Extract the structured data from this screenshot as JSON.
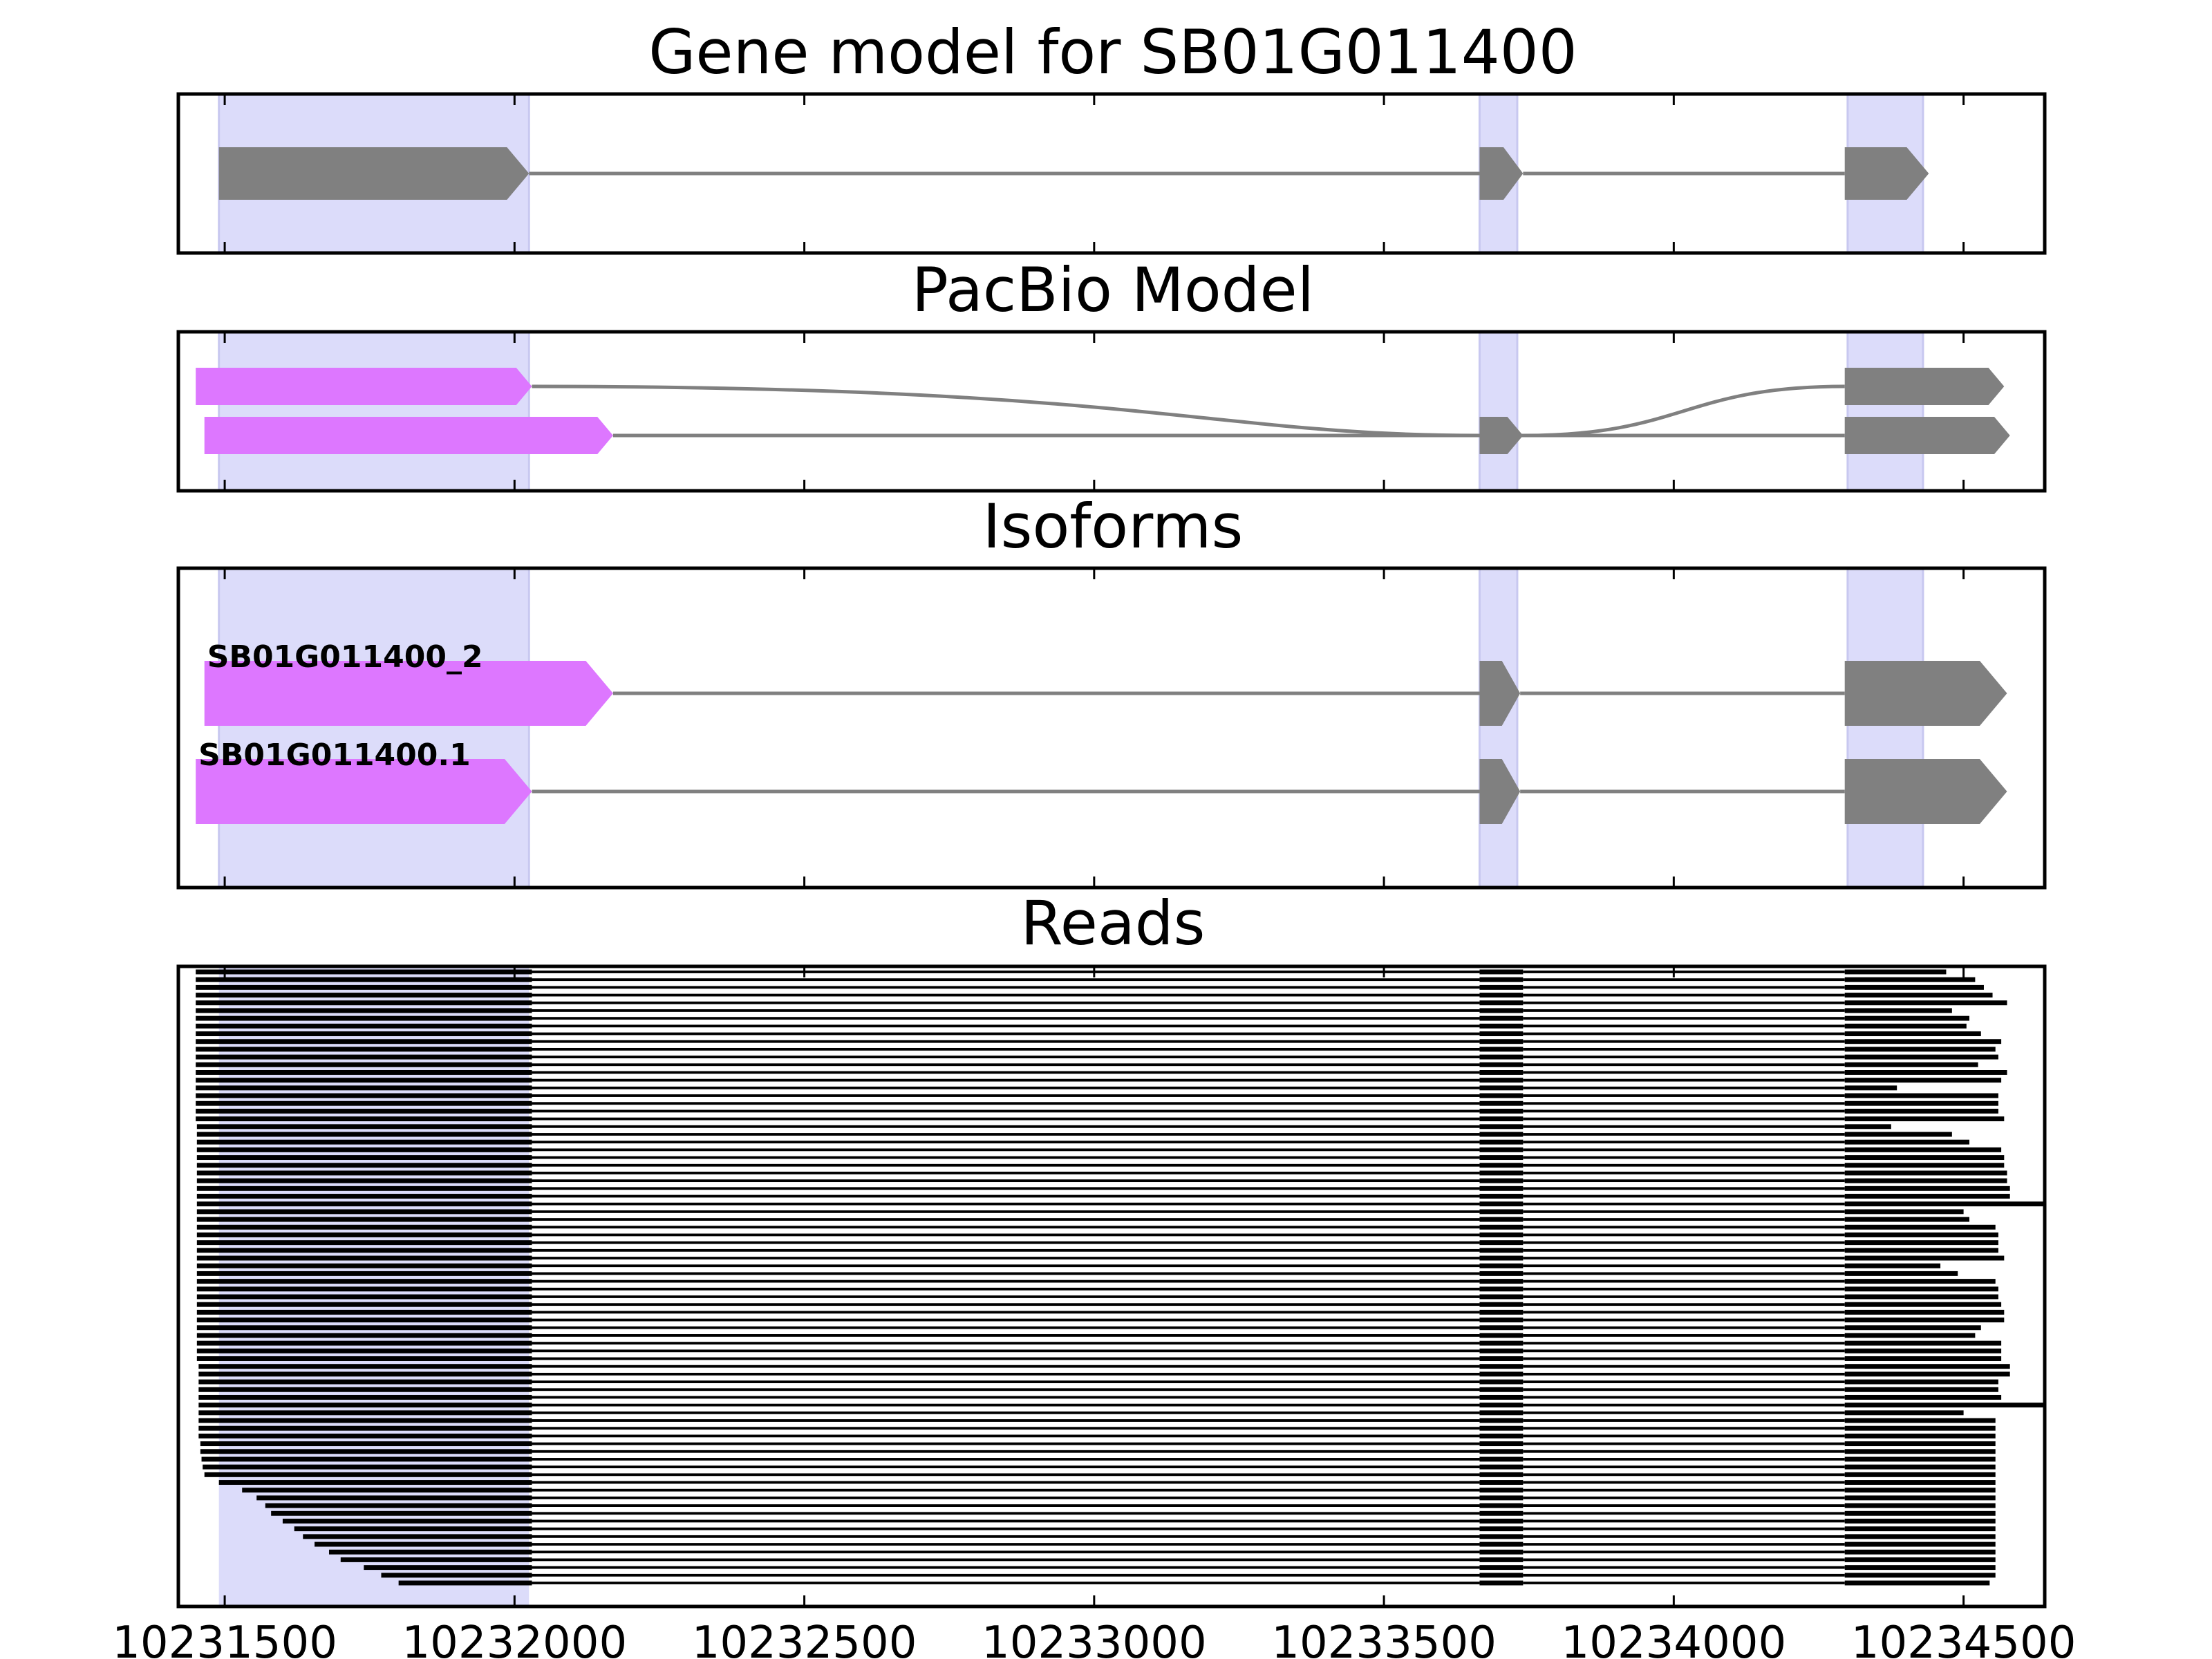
{
  "figure_title": "Gene model for SB01G011400",
  "colors": {
    "exon_gray": "#808080",
    "utr_magenta": "#dd77ff",
    "highlight": "#dcdcfa",
    "intron": "#808080",
    "read": "#000000"
  },
  "chart_data": [
    {
      "type": "gene-model",
      "title": "Gene model for SB01G011400",
      "xlim": [
        10231420,
        10234640
      ],
      "tracks": [
        {
          "color": "gray",
          "exons": [
            [
              10231490,
              10232025
            ],
            [
              10233665,
              10233740
            ],
            [
              10234295,
              10234440
            ]
          ]
        }
      ],
      "highlight_regions": [
        [
          10231490,
          10232025
        ],
        [
          10233665,
          10233730
        ],
        [
          10234300,
          10234430
        ]
      ]
    },
    {
      "type": "gene-model",
      "title": "PacBio Model",
      "xlim": [
        10231420,
        10234640
      ],
      "tracks": [
        {
          "utr": [
            10231450,
            10232030
          ],
          "exons": [
            [
              10234295,
              10234570
            ]
          ],
          "intron_curve": true
        },
        {
          "utr": [
            10231465,
            10232170
          ],
          "exons": [
            [
              10233665,
              10233740
            ],
            [
              10234295,
              10234580
            ]
          ]
        }
      ],
      "highlight_regions": [
        [
          10231490,
          10232025
        ],
        [
          10233665,
          10233730
        ],
        [
          10234300,
          10234430
        ]
      ]
    },
    {
      "type": "gene-model",
      "title": "Isoforms",
      "xlim": [
        10231420,
        10234640
      ],
      "isoforms": [
        {
          "name": "SB01G011400_2",
          "utr": [
            10231465,
            10232170
          ],
          "exons": [
            [
              10233665,
              10233735
            ],
            [
              10234295,
              10234575
            ]
          ]
        },
        {
          "name": "SB01G011400.1",
          "utr": [
            10231450,
            10232030
          ],
          "exons": [
            [
              10233665,
              10233735
            ],
            [
              10234295,
              10234575
            ]
          ]
        }
      ],
      "highlight_regions": [
        [
          10231490,
          10232025
        ],
        [
          10233665,
          10233730
        ],
        [
          10234300,
          10234430
        ]
      ]
    },
    {
      "type": "reads",
      "title": "Reads",
      "xlim": [
        10231420,
        10234640
      ],
      "x_ticks": [
        "10231500",
        "10232000",
        "10232500",
        "10233000",
        "10233500",
        "10234000",
        "10234500"
      ],
      "blocks": [
        [
          10232030,
          10233665
        ],
        [
          10233665,
          10233740
        ],
        [
          10233740,
          10234295
        ]
      ],
      "read_starts": [
        10231450,
        10231450,
        10231450,
        10231450,
        10231450,
        10231450,
        10231450,
        10231450,
        10231450,
        10231450,
        10231450,
        10231450,
        10231450,
        10231450,
        10231450,
        10231450,
        10231450,
        10231450,
        10231450,
        10231450,
        10231452,
        10231452,
        10231452,
        10231452,
        10231452,
        10231452,
        10231452,
        10231452,
        10231452,
        10231452,
        10231452,
        10231452,
        10231452,
        10231452,
        10231452,
        10231452,
        10231452,
        10231452,
        10231452,
        10231452,
        10231452,
        10231452,
        10231452,
        10231452,
        10231452,
        10231452,
        10231452,
        10231452,
        10231452,
        10231452,
        10231452,
        10231455,
        10231455,
        10231455,
        10231455,
        10231455,
        10231455,
        10231455,
        10231455,
        10231455,
        10231455,
        10231458,
        10231458,
        10231460,
        10231462,
        10231465,
        10231490,
        10231530,
        10231555,
        10231570,
        10231580,
        10231600,
        10231620,
        10231635,
        10231655,
        10231680,
        10231700,
        10231740,
        10231770,
        10231800
      ],
      "read_ends": [
        10234470,
        10234520,
        10234535,
        10234550,
        10234575,
        10234480,
        10234510,
        10234505,
        10234530,
        10234565,
        10234555,
        10234560,
        10234525,
        10234575,
        10234565,
        10234385,
        10234560,
        10234560,
        10234560,
        10234570,
        10234375,
        10234480,
        10234510,
        10234565,
        10234570,
        10234570,
        10234575,
        10234575,
        10234580,
        10234580,
        10234640,
        10234500,
        10234510,
        10234555,
        10234560,
        10234560,
        10234560,
        10234570,
        10234460,
        10234490,
        10234555,
        10234560,
        10234560,
        10234565,
        10234570,
        10234570,
        10234530,
        10234520,
        10234565,
        10234565,
        10234565,
        10234580,
        10234580,
        10234560,
        10234560,
        10234565,
        10234640,
        10234500,
        10234555,
        10234555,
        10234555,
        10234555,
        10234555,
        10234555,
        10234555,
        10234555,
        10234555,
        10234555,
        10234555,
        10234555,
        10234555,
        10234555,
        10234555,
        10234555,
        10234555,
        10234555,
        10234555,
        10234555,
        10234555,
        10234545
      ]
    }
  ]
}
